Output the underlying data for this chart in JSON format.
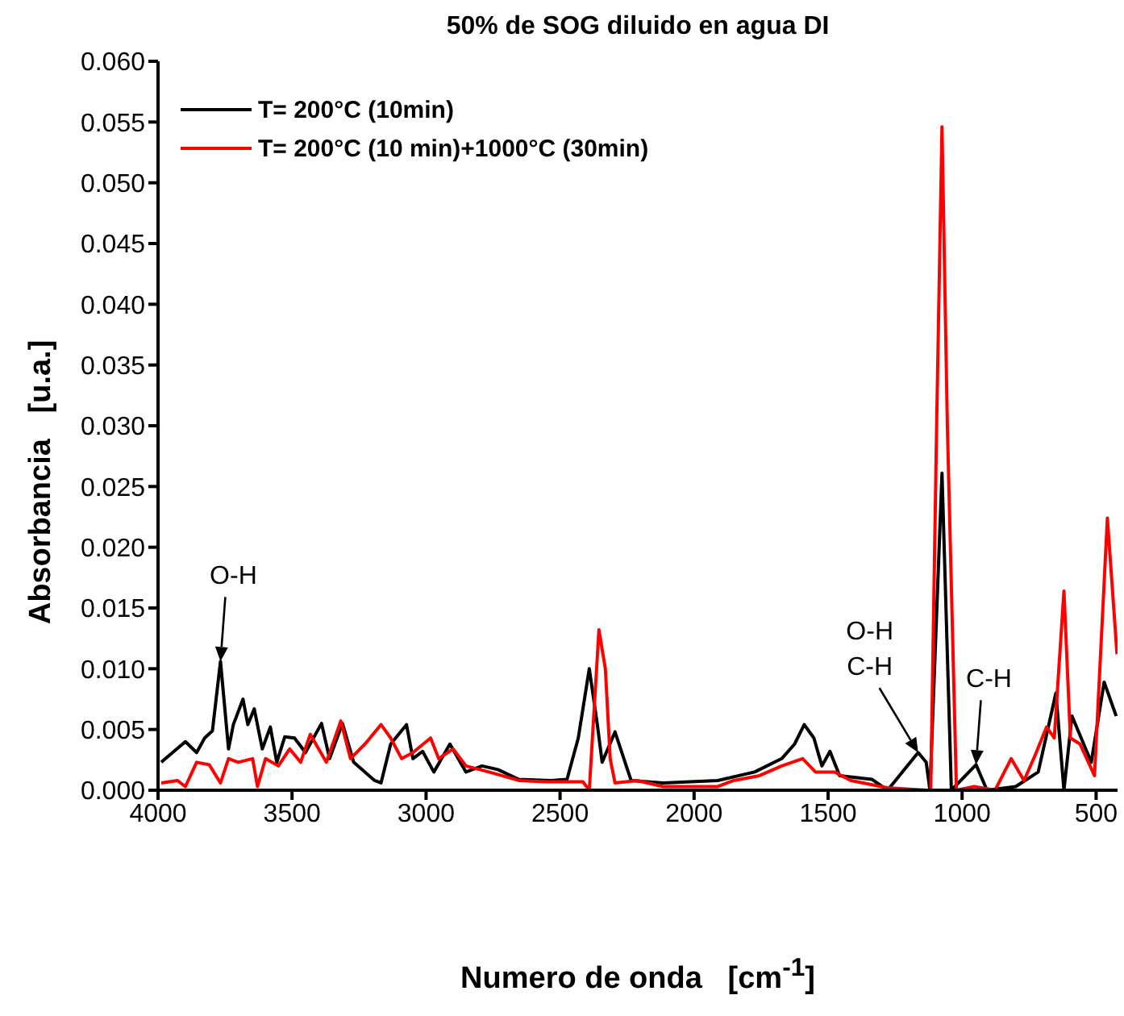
{
  "chart_data": {
    "type": "line",
    "title": "50% de SOG diluido en agua DI",
    "xlabel": "Numero de onda   [cm$^{-1}$]",
    "ylabel": "Absorbancia   [u.a.]",
    "xlim": [
      4000,
      420
    ],
    "xticks": [
      4000,
      3500,
      3000,
      2500,
      2000,
      1500,
      1000,
      500
    ],
    "ylim": [
      0,
      0.06
    ],
    "yticks": [
      {
        "value": 0,
        "label": "0.000"
      },
      {
        "value": 0.005,
        "label": "0.005"
      },
      {
        "value": 0.01,
        "label": "0.010"
      },
      {
        "value": 0.015,
        "label": "0.015"
      },
      {
        "value": 0.02,
        "label": "0.020"
      },
      {
        "value": 0.025,
        "label": "0.025"
      },
      {
        "value": 0.03,
        "label": "0.030"
      },
      {
        "value": 0.035,
        "label": "0.035"
      },
      {
        "value": 0.04,
        "label": "0.040"
      },
      {
        "value": 0.045,
        "label": "0.045"
      },
      {
        "value": 0.05,
        "label": "0.050"
      },
      {
        "value": 0.055,
        "label": "0.055"
      },
      {
        "value": 0.06,
        "label": "0.060"
      }
    ],
    "grid": false,
    "legend": "top left",
    "marker": "none",
    "line_style": "solid",
    "annotations": [
      {
        "text": "O-H",
        "x": 3767,
        "y": 0.0106
      },
      {
        "text": "O-H\nC-H",
        "x": 1164,
        "y": 0.0031
      },
      {
        "text": "C-H",
        "x": 948,
        "y": 0.0021
      }
    ],
    "series": [
      {
        "name": "T= 200°C (10min)",
        "color": "#000000",
        "x": [
          3988,
          3898,
          3856,
          3826,
          3797,
          3767,
          3737,
          3719,
          3683,
          3665,
          3641,
          3611,
          3581,
          3557,
          3527,
          3491,
          3450,
          3390,
          3360,
          3312,
          3270,
          3192,
          3168,
          3132,
          3073,
          3049,
          3013,
          2971,
          2911,
          2851,
          2791,
          2732,
          2654,
          2534,
          2474,
          2432,
          2391,
          2361,
          2343,
          2295,
          2253,
          2235,
          2115,
          1912,
          1774,
          1673,
          1625,
          1589,
          1553,
          1523,
          1493,
          1457,
          1337,
          1278,
          1164,
          1134,
          1120,
          1075,
          1040,
          948,
          907,
          800,
          716,
          650,
          620,
          590,
          518,
          470,
          425
        ],
        "values": [
          0.0023,
          0.004,
          0.0031,
          0.0043,
          0.0049,
          0.0106,
          0.0034,
          0.0054,
          0.0075,
          0.0054,
          0.0067,
          0.0034,
          0.0052,
          0.0023,
          0.0044,
          0.0043,
          0.0031,
          0.0055,
          0.0026,
          0.0055,
          0.0023,
          0.0008,
          0.0006,
          0.0038,
          0.0054,
          0.0026,
          0.0032,
          0.0015,
          0.0038,
          0.0015,
          0.002,
          0.0017,
          0.0009,
          0.0008,
          0.0009,
          0.0043,
          0.01,
          0.0054,
          0.0023,
          0.0048,
          0.002,
          0.0008,
          0.0006,
          0.0008,
          0.0015,
          0.0026,
          0.0038,
          0.0054,
          0.0043,
          0.002,
          0.0032,
          0.0012,
          0.0009,
          0,
          0.0031,
          0.0023,
          0,
          0.0261,
          0,
          0.0021,
          0,
          0.0003,
          0.0015,
          0.008,
          0,
          0.0061,
          0.0023,
          0.0089,
          0.0061
        ]
      },
      {
        "name": "T= 200°C (10 min)+1000°C (30min)",
        "color": "#ff0000",
        "x": [
          3988,
          3928,
          3898,
          3856,
          3809,
          3767,
          3737,
          3701,
          3647,
          3629,
          3599,
          3551,
          3509,
          3468,
          3432,
          3372,
          3318,
          3282,
          3228,
          3168,
          3132,
          3091,
          3049,
          2983,
          2953,
          2899,
          2851,
          2749,
          2654,
          2552,
          2415,
          2391,
          2355,
          2331,
          2313,
          2295,
          2212,
          2115,
          1912,
          1852,
          1756,
          1673,
          1595,
          1547,
          1475,
          1415,
          1278,
          1134,
          1117,
          1095,
          1075,
          1055,
          1021,
          955,
          877,
          817,
          769,
          727,
          685,
          656,
          620,
          596,
          560,
          506,
          458,
          422
        ],
        "values": [
          0.0006,
          0.0008,
          0.0003,
          0.0023,
          0.0021,
          0.0006,
          0.0026,
          0.0023,
          0.0026,
          0.0003,
          0.0026,
          0.002,
          0.0034,
          0.0023,
          0.0046,
          0.0023,
          0.0057,
          0.0026,
          0.0038,
          0.0054,
          0.0043,
          0.0026,
          0.0031,
          0.0043,
          0.0026,
          0.0034,
          0.002,
          0.0014,
          0.0008,
          0.0007,
          0.0007,
          0,
          0.0132,
          0.01,
          0.0026,
          0.0006,
          0.0008,
          0.0003,
          0.0003,
          0.0008,
          0.0012,
          0.002,
          0.0026,
          0.0015,
          0.0015,
          0.0008,
          0.0002,
          0,
          0,
          0.03,
          0.0546,
          0.03,
          0,
          0.0003,
          0,
          0.0026,
          0.0008,
          0.0029,
          0.0052,
          0.0043,
          0.0164,
          0.0043,
          0.0038,
          0.0012,
          0.0224,
          0.0112
        ]
      }
    ]
  }
}
